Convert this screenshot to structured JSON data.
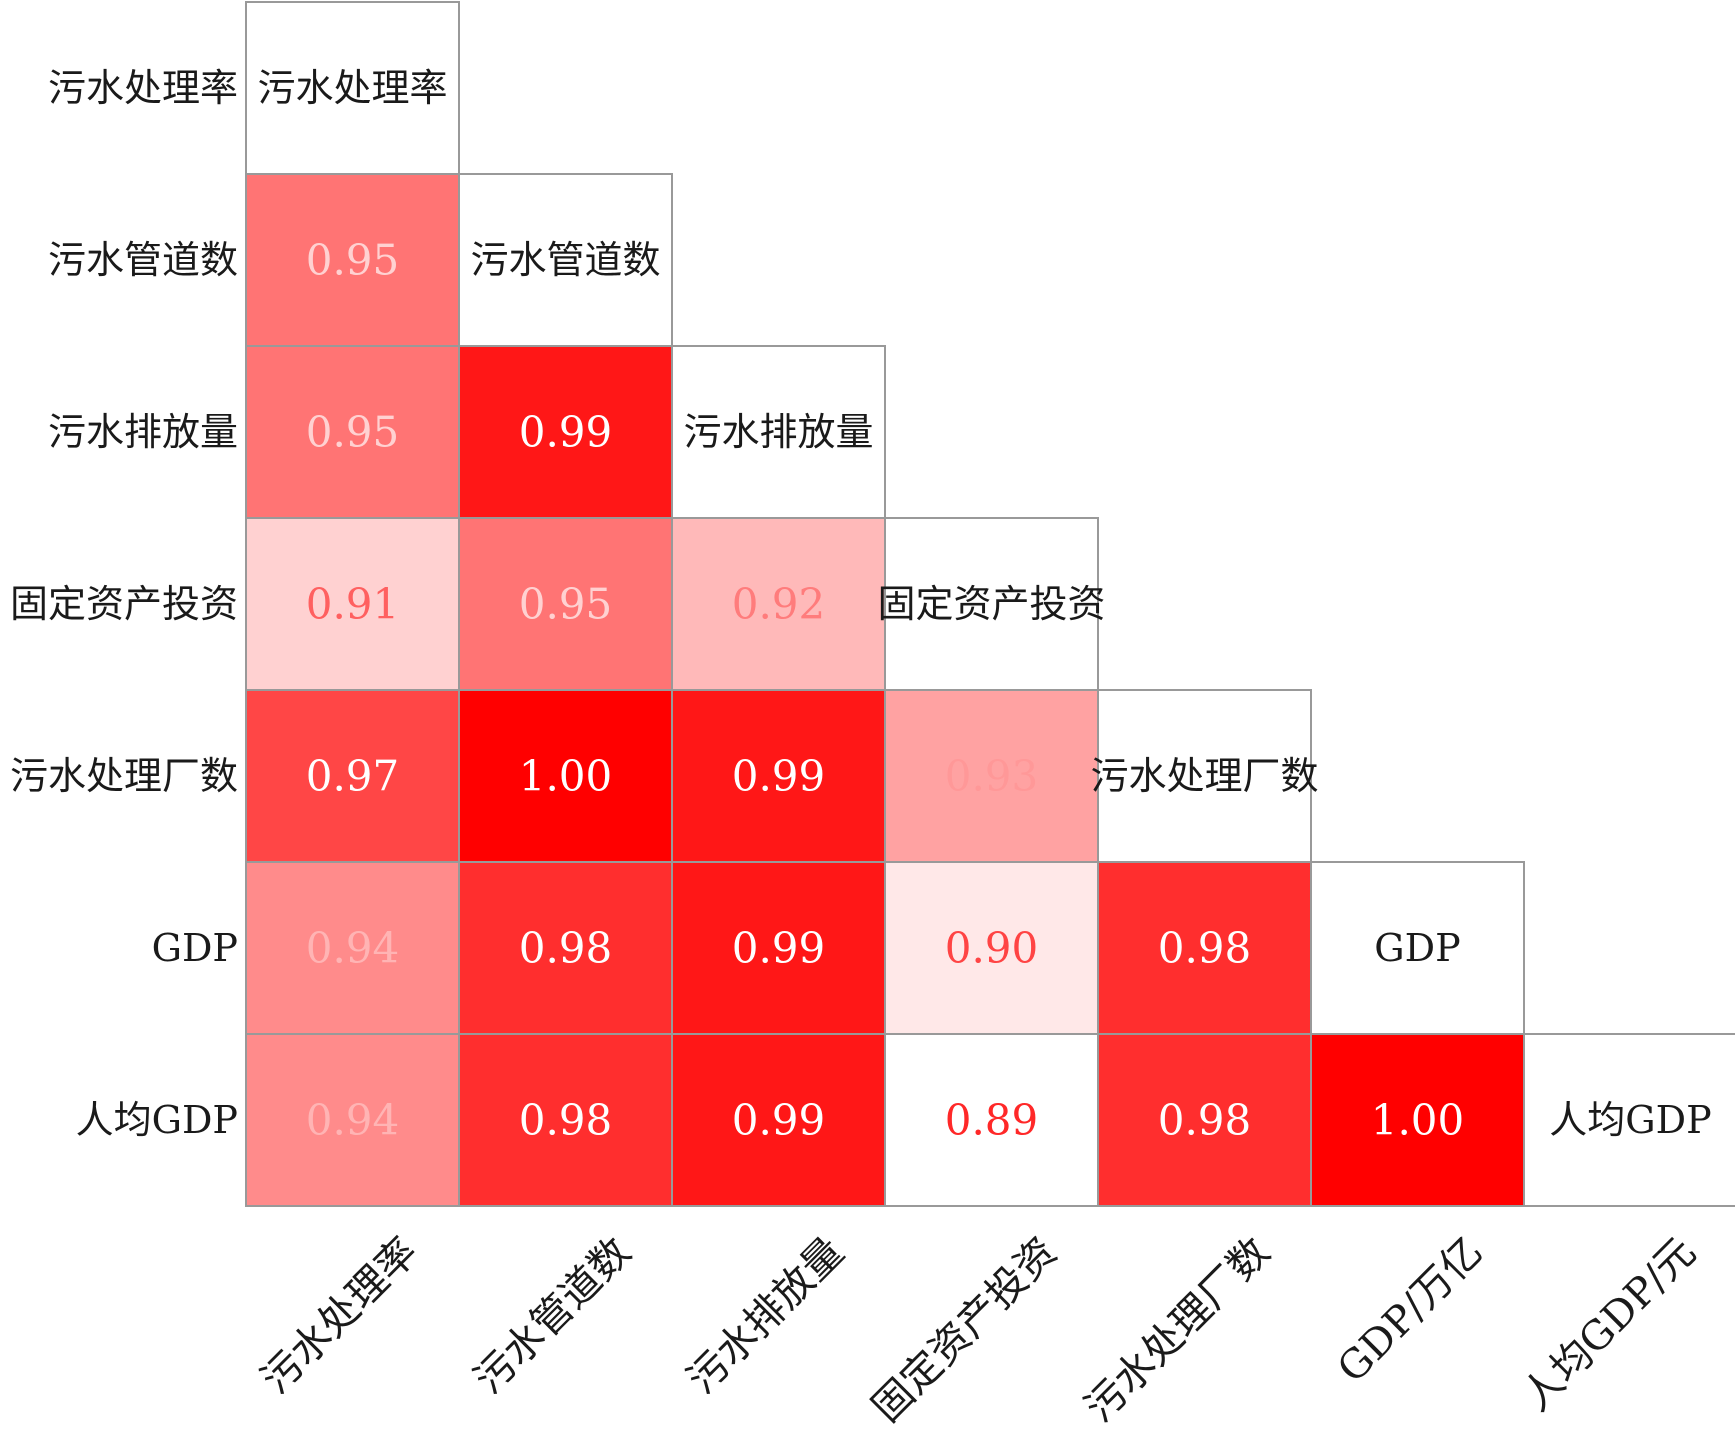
{
  "chart_data": {
    "type": "heatmap",
    "layout": "lower-triangle-correlation",
    "row_labels": [
      "污水处理率",
      "污水管道数",
      "污水排放量",
      "固定资产投资",
      "污水处理厂数",
      "GDP",
      "人均GDP"
    ],
    "diagonal_labels": [
      "污水处理率",
      "污水管道数",
      "污水排放量",
      "固定资产投资",
      "污水处理厂数",
      "GDP",
      "人均GDP"
    ],
    "column_labels": [
      "污水处理率",
      "污水管道数",
      "污水排放量",
      "固定资产投资",
      "污水处理厂数",
      "GDP/万亿",
      "人均GDP/元"
    ],
    "values": [
      [],
      [
        "0.95"
      ],
      [
        "0.95",
        "0.99"
      ],
      [
        "0.91",
        "0.95",
        "0.92"
      ],
      [
        "0.97",
        "1.00",
        "0.99",
        "0.93"
      ],
      [
        "0.94",
        "0.98",
        "0.99",
        "0.90",
        "0.98"
      ],
      [
        "0.94",
        "0.98",
        "0.99",
        "0.89",
        "0.98",
        "1.00"
      ]
    ],
    "color_range": [
      0.89,
      1.0
    ],
    "colors": {
      "low": "#ffffff",
      "high": "#ff0000",
      "border": "#999999"
    },
    "grid": false,
    "legend": "none"
  }
}
